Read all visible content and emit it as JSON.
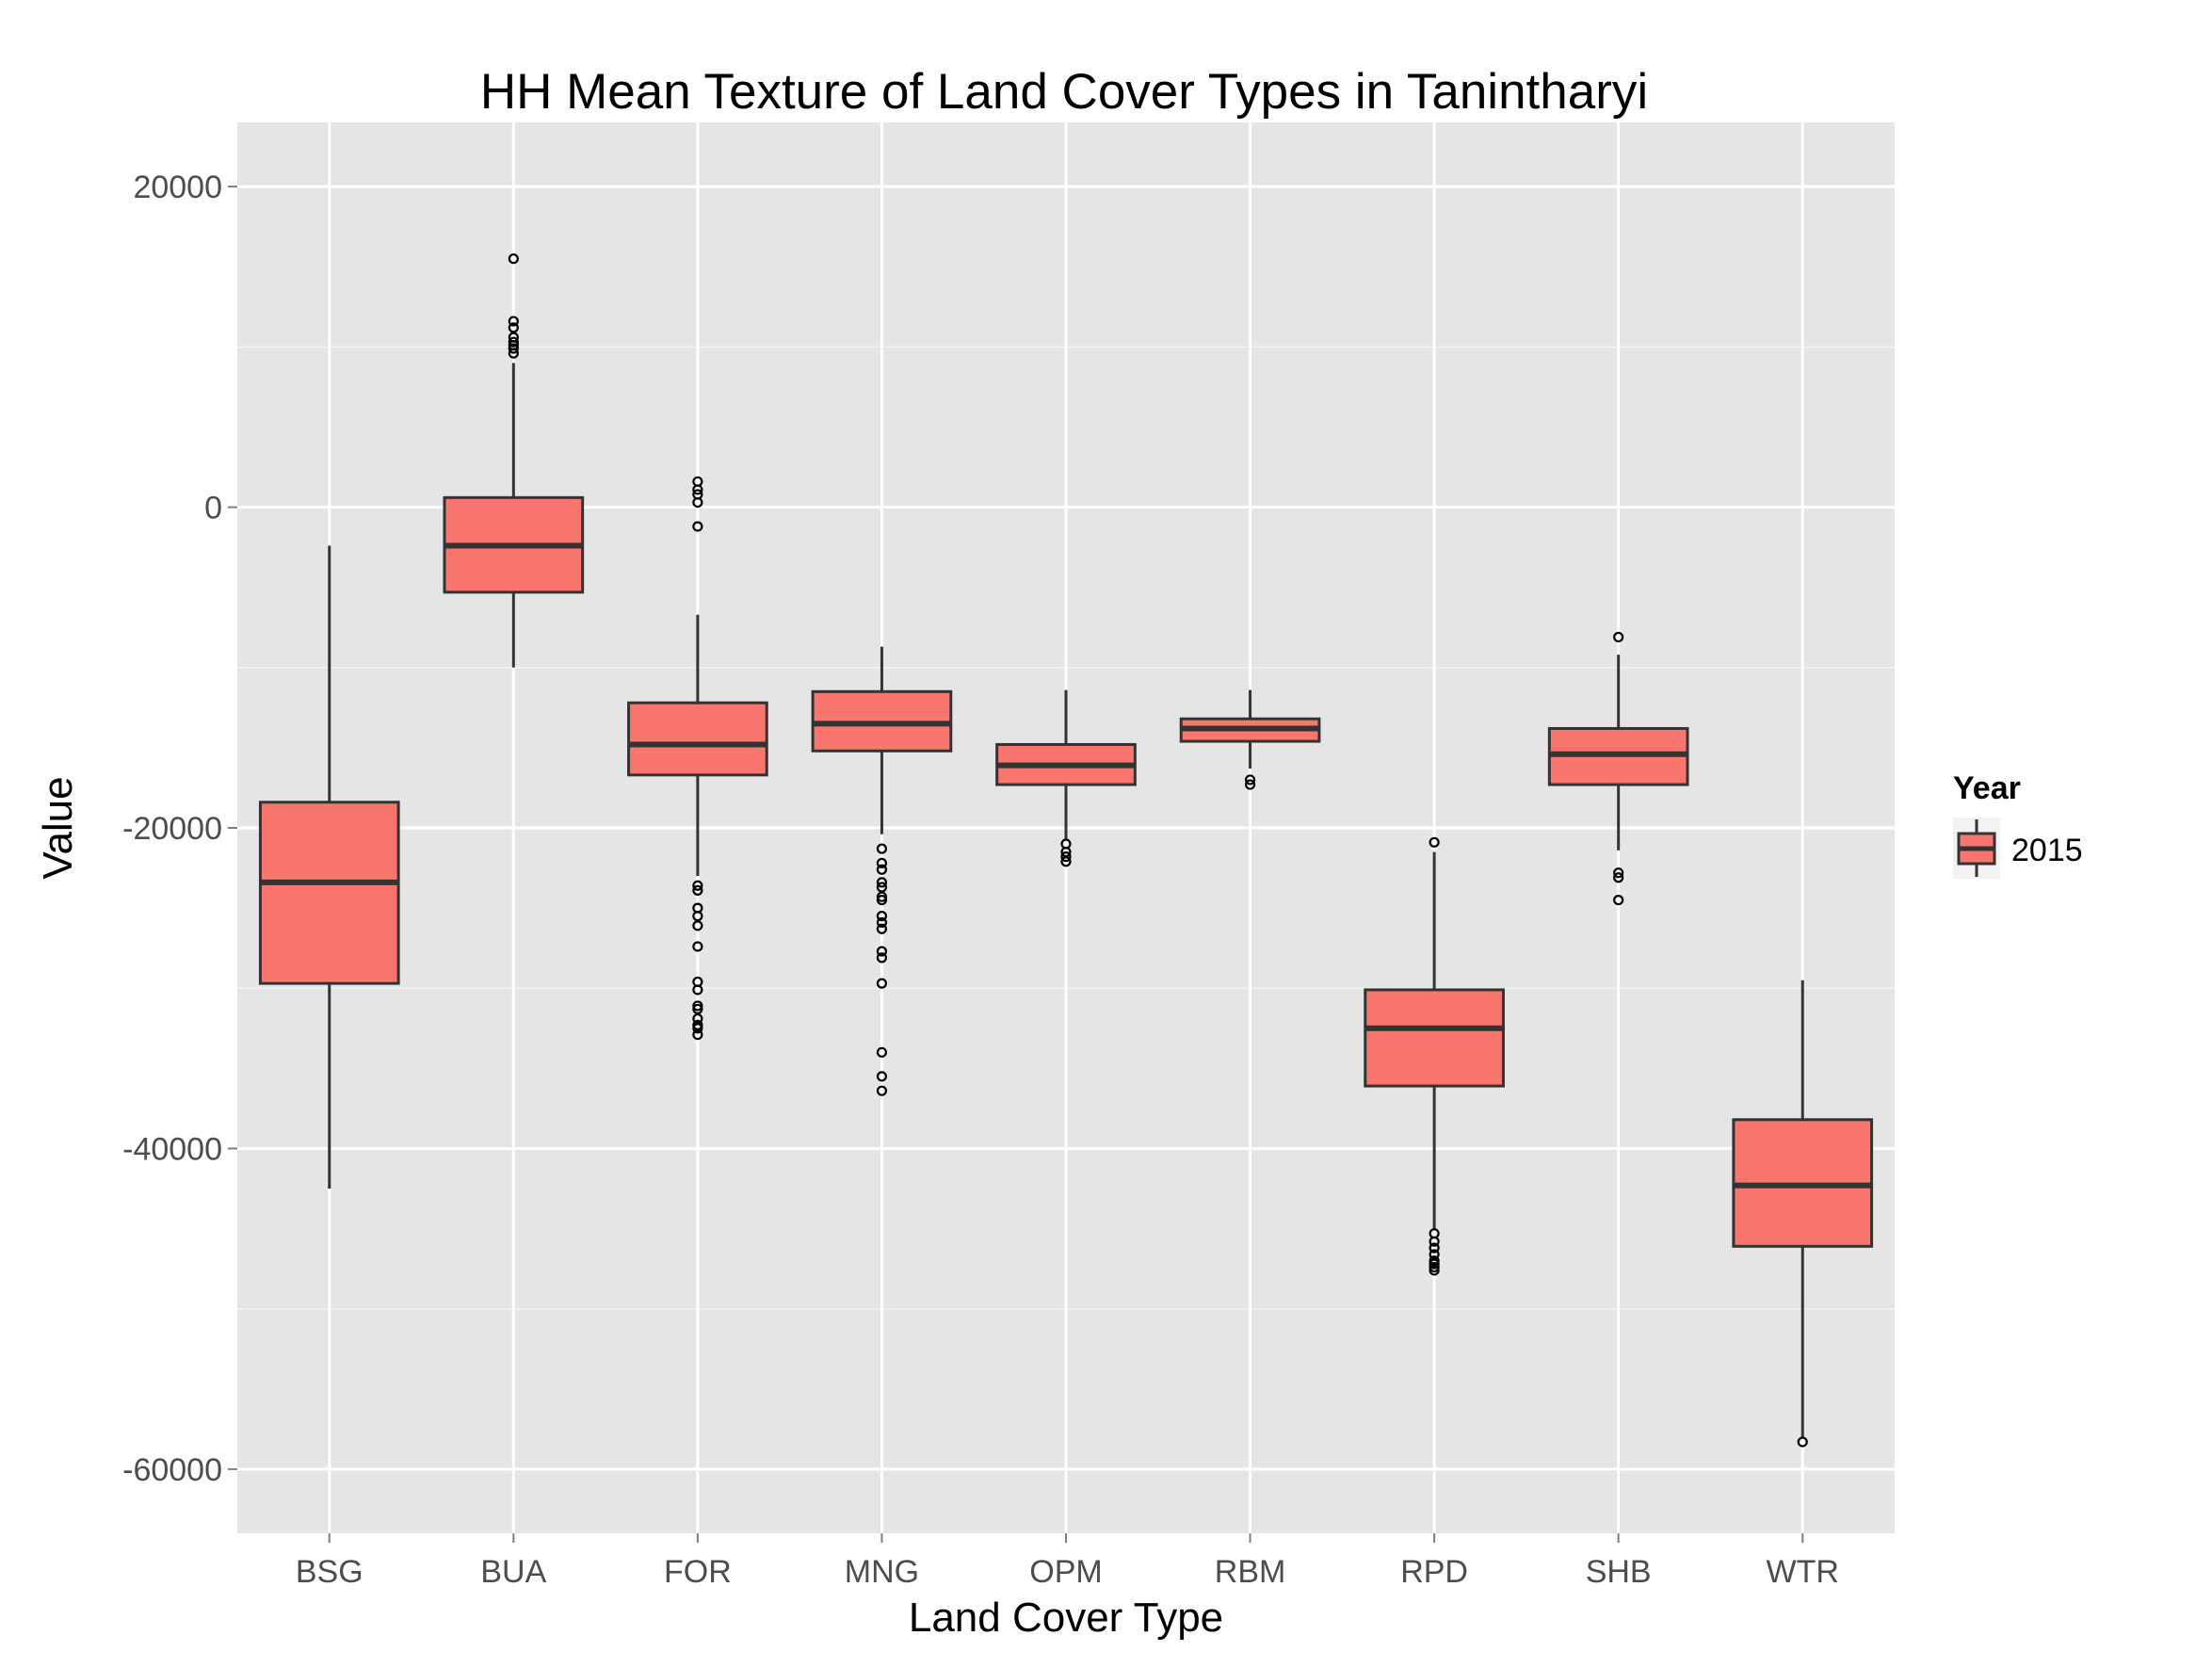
{
  "chart_data": {
    "type": "boxplot",
    "title": "HH Mean Texture of Land Cover Types in Tanintharyi",
    "xlabel": "Land Cover Type",
    "ylabel": "Value",
    "ylim": [
      -64000,
      24000
    ],
    "yticks": [
      20000,
      0,
      -20000,
      -40000,
      -60000
    ],
    "ytick_labels": [
      "20000",
      "0",
      "-20000",
      "-40000",
      "-60000"
    ],
    "grid": true,
    "legend": {
      "title": "Year",
      "position": "right",
      "items": [
        {
          "label": "2015"
        }
      ]
    },
    "colors": {
      "panel": "#e5e5e5",
      "grid": "#ffffff",
      "box_fill": "#f8766d",
      "box_line": "#333333",
      "tick_label": "#4d4d4d"
    },
    "categories": [
      "BSG",
      "BUA",
      "FOR",
      "MNG",
      "OPM",
      "RBM",
      "RPD",
      "SHB",
      "WTR"
    ],
    "series": [
      {
        "name": "2015",
        "boxes": [
          {
            "category": "BSG",
            "whisker_low": -42500,
            "q1": -29700,
            "median": -23400,
            "q3": -18400,
            "whisker_high": -2400,
            "outliers": []
          },
          {
            "category": "BUA",
            "whisker_low": -10000,
            "q1": -5300,
            "median": -2400,
            "q3": 600,
            "whisker_high": 9000,
            "outliers": [
              15500,
              11600,
              11200,
              10600,
              10300,
              10100,
              9900,
              9600
            ]
          },
          {
            "category": "FOR",
            "whisker_low": -23000,
            "q1": -16700,
            "median": -14800,
            "q3": -12200,
            "whisker_high": -6700,
            "outliers": [
              1600,
              1100,
              800,
              300,
              -1200,
              -23600,
              -23900,
              -25000,
              -25500,
              -26100,
              -27400,
              -29600,
              -30100,
              -31100,
              -31300,
              -31900,
              -32300,
              -32500,
              -32900
            ]
          },
          {
            "category": "MNG",
            "whisker_low": -20400,
            "q1": -15200,
            "median": -13500,
            "q3": -11500,
            "whisker_high": -8700,
            "outliers": [
              -21300,
              -22200,
              -22600,
              -23400,
              -23700,
              -24300,
              -24500,
              -25500,
              -25900,
              -26300,
              -27700,
              -28100,
              -29700,
              -34000,
              -35500,
              -36400
            ]
          },
          {
            "category": "OPM",
            "whisker_low": -20700,
            "q1": -17300,
            "median": -16100,
            "q3": -14800,
            "whisker_high": -11400,
            "outliers": [
              -21000,
              -21500,
              -21800,
              -22100
            ]
          },
          {
            "category": "RBM",
            "whisker_low": -16300,
            "q1": -14600,
            "median": -13800,
            "q3": -13200,
            "whisker_high": -11400,
            "outliers": [
              -17000,
              -17300
            ]
          },
          {
            "category": "RPD",
            "whisker_low": -45000,
            "q1": -36100,
            "median": -32500,
            "q3": -30100,
            "whisker_high": -21500,
            "outliers": [
              -20900,
              -45300,
              -45800,
              -46200,
              -46600,
              -47000,
              -47200,
              -47400,
              -47600
            ]
          },
          {
            "category": "SHB",
            "whisker_low": -21400,
            "q1": -17300,
            "median": -15400,
            "q3": -13800,
            "whisker_high": -9200,
            "outliers": [
              -8100,
              -22800,
              -23100,
              -24500
            ]
          },
          {
            "category": "WTR",
            "whisker_low": -58000,
            "q1": -46100,
            "median": -42300,
            "q3": -38200,
            "whisker_high": -29500,
            "outliers": [
              -58300
            ]
          }
        ]
      }
    ]
  }
}
